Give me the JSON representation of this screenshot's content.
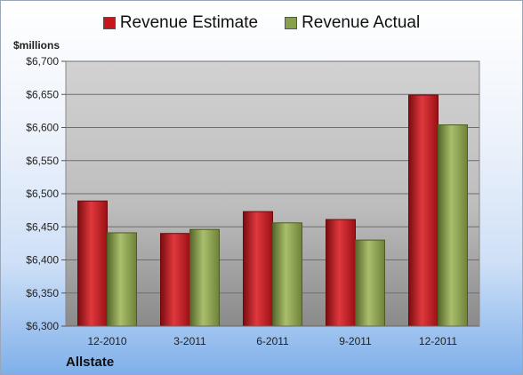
{
  "chart_data": {
    "type": "bar",
    "categories": [
      "12-2010",
      "3-2011",
      "6-2011",
      "9-2011",
      "12-2011"
    ],
    "series": [
      {
        "name": "Revenue Estimate",
        "color": "#c8161d",
        "values": [
          6489,
          6440,
          6473,
          6461,
          6649
        ]
      },
      {
        "name": "Revenue Actual",
        "color": "#88a04a",
        "values": [
          6441,
          6446,
          6456,
          6430,
          6604
        ]
      }
    ],
    "ylabel": "$millions",
    "ylim": [
      6300,
      6700
    ],
    "yticks": [
      "$6,300",
      "$6,350",
      "$6,400",
      "$6,450",
      "$6,500",
      "$6,550",
      "$6,600",
      "$6,650",
      "$6,700"
    ],
    "grid": true,
    "legend_position": "top"
  },
  "company": "Allstate"
}
